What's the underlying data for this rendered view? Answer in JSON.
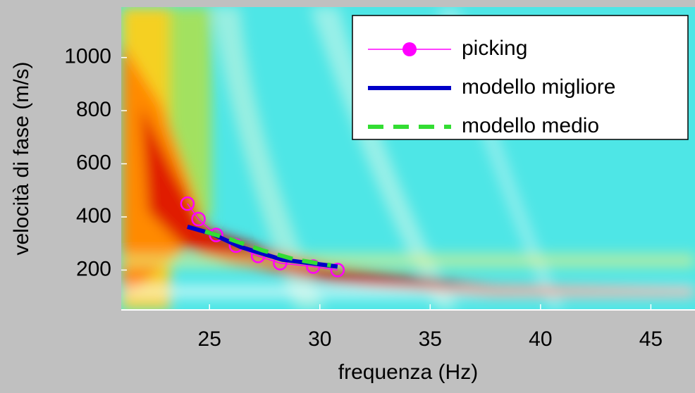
{
  "chart_data": {
    "type": "line",
    "x_label": "frequenza (Hz)",
    "y_label": "velocità di fase (m/s)",
    "xlim": [
      21,
      47
    ],
    "ylim": [
      50,
      1190
    ],
    "xticks": [
      25,
      30,
      35,
      40,
      45
    ],
    "yticks": [
      200,
      400,
      600,
      800,
      1000
    ],
    "legend": "upper right",
    "series": [
      {
        "name": "picking",
        "color": "#ff00ff",
        "marker": "circle",
        "x": [
          24.0,
          24.5,
          25.3,
          26.2,
          27.2,
          28.2,
          29.7,
          30.8
        ],
        "values": [
          450,
          392,
          332,
          292,
          253,
          226,
          213,
          200
        ]
      },
      {
        "name": "modello migliore",
        "color": "#0000c8",
        "x": [
          24.0,
          25.1,
          26.4,
          28.3,
          30.8
        ],
        "values": [
          363,
          337,
          287,
          239,
          213
        ]
      },
      {
        "name": "modello medio",
        "color": "#33dd33",
        "dash": true,
        "x": [
          24.8,
          26.0,
          27.4,
          28.9,
          30.5
        ],
        "values": [
          345,
          314,
          274,
          239,
          218
        ]
      }
    ]
  }
}
